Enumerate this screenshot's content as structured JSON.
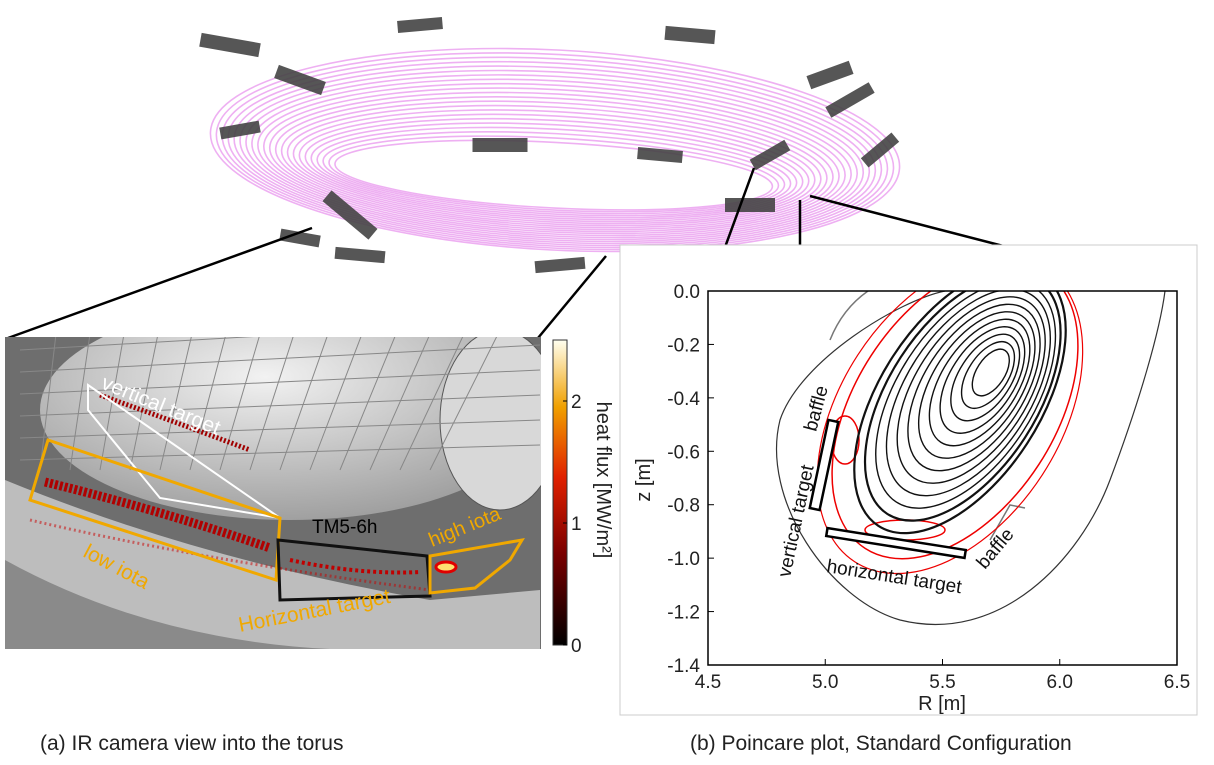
{
  "panel_a": {
    "annotations": {
      "vertical_target": "vertical target",
      "module": "TM5-6h",
      "high_iota": "high iota",
      "low_iota": "low iota",
      "horizontal_target": "Horizontal target"
    },
    "colorbar": {
      "label": "heat flux [MW/m²]",
      "lim": [
        0,
        2.5
      ],
      "ticks": [
        0,
        1,
        2
      ]
    },
    "caption": "(a) IR camera view into the torus"
  },
  "panel_b": {
    "xlabel": "R [m]",
    "ylabel": "z [m]",
    "xlim": [
      4.5,
      6.5
    ],
    "ylim": [
      -1.4,
      0
    ],
    "xticks": [
      4.5,
      {
        "value": 5,
        "label": "5.0"
      },
      5.5,
      {
        "value": 6,
        "label": "6.0"
      },
      6.5
    ],
    "yticks": [
      {
        "value": 0,
        "label": "0.0"
      },
      -0.2,
      -0.4,
      -0.6,
      -0.8,
      {
        "value": -1,
        "label": "-1.0"
      },
      -1.2,
      -1.4
    ],
    "annotations": {
      "baffle_upper": "baffle",
      "vertical_target": "vertical target",
      "horizontal_target": "horizontal target",
      "baffle_lower": "baffle"
    },
    "caption": "(b) Poincare plot, Standard Configuration"
  }
}
